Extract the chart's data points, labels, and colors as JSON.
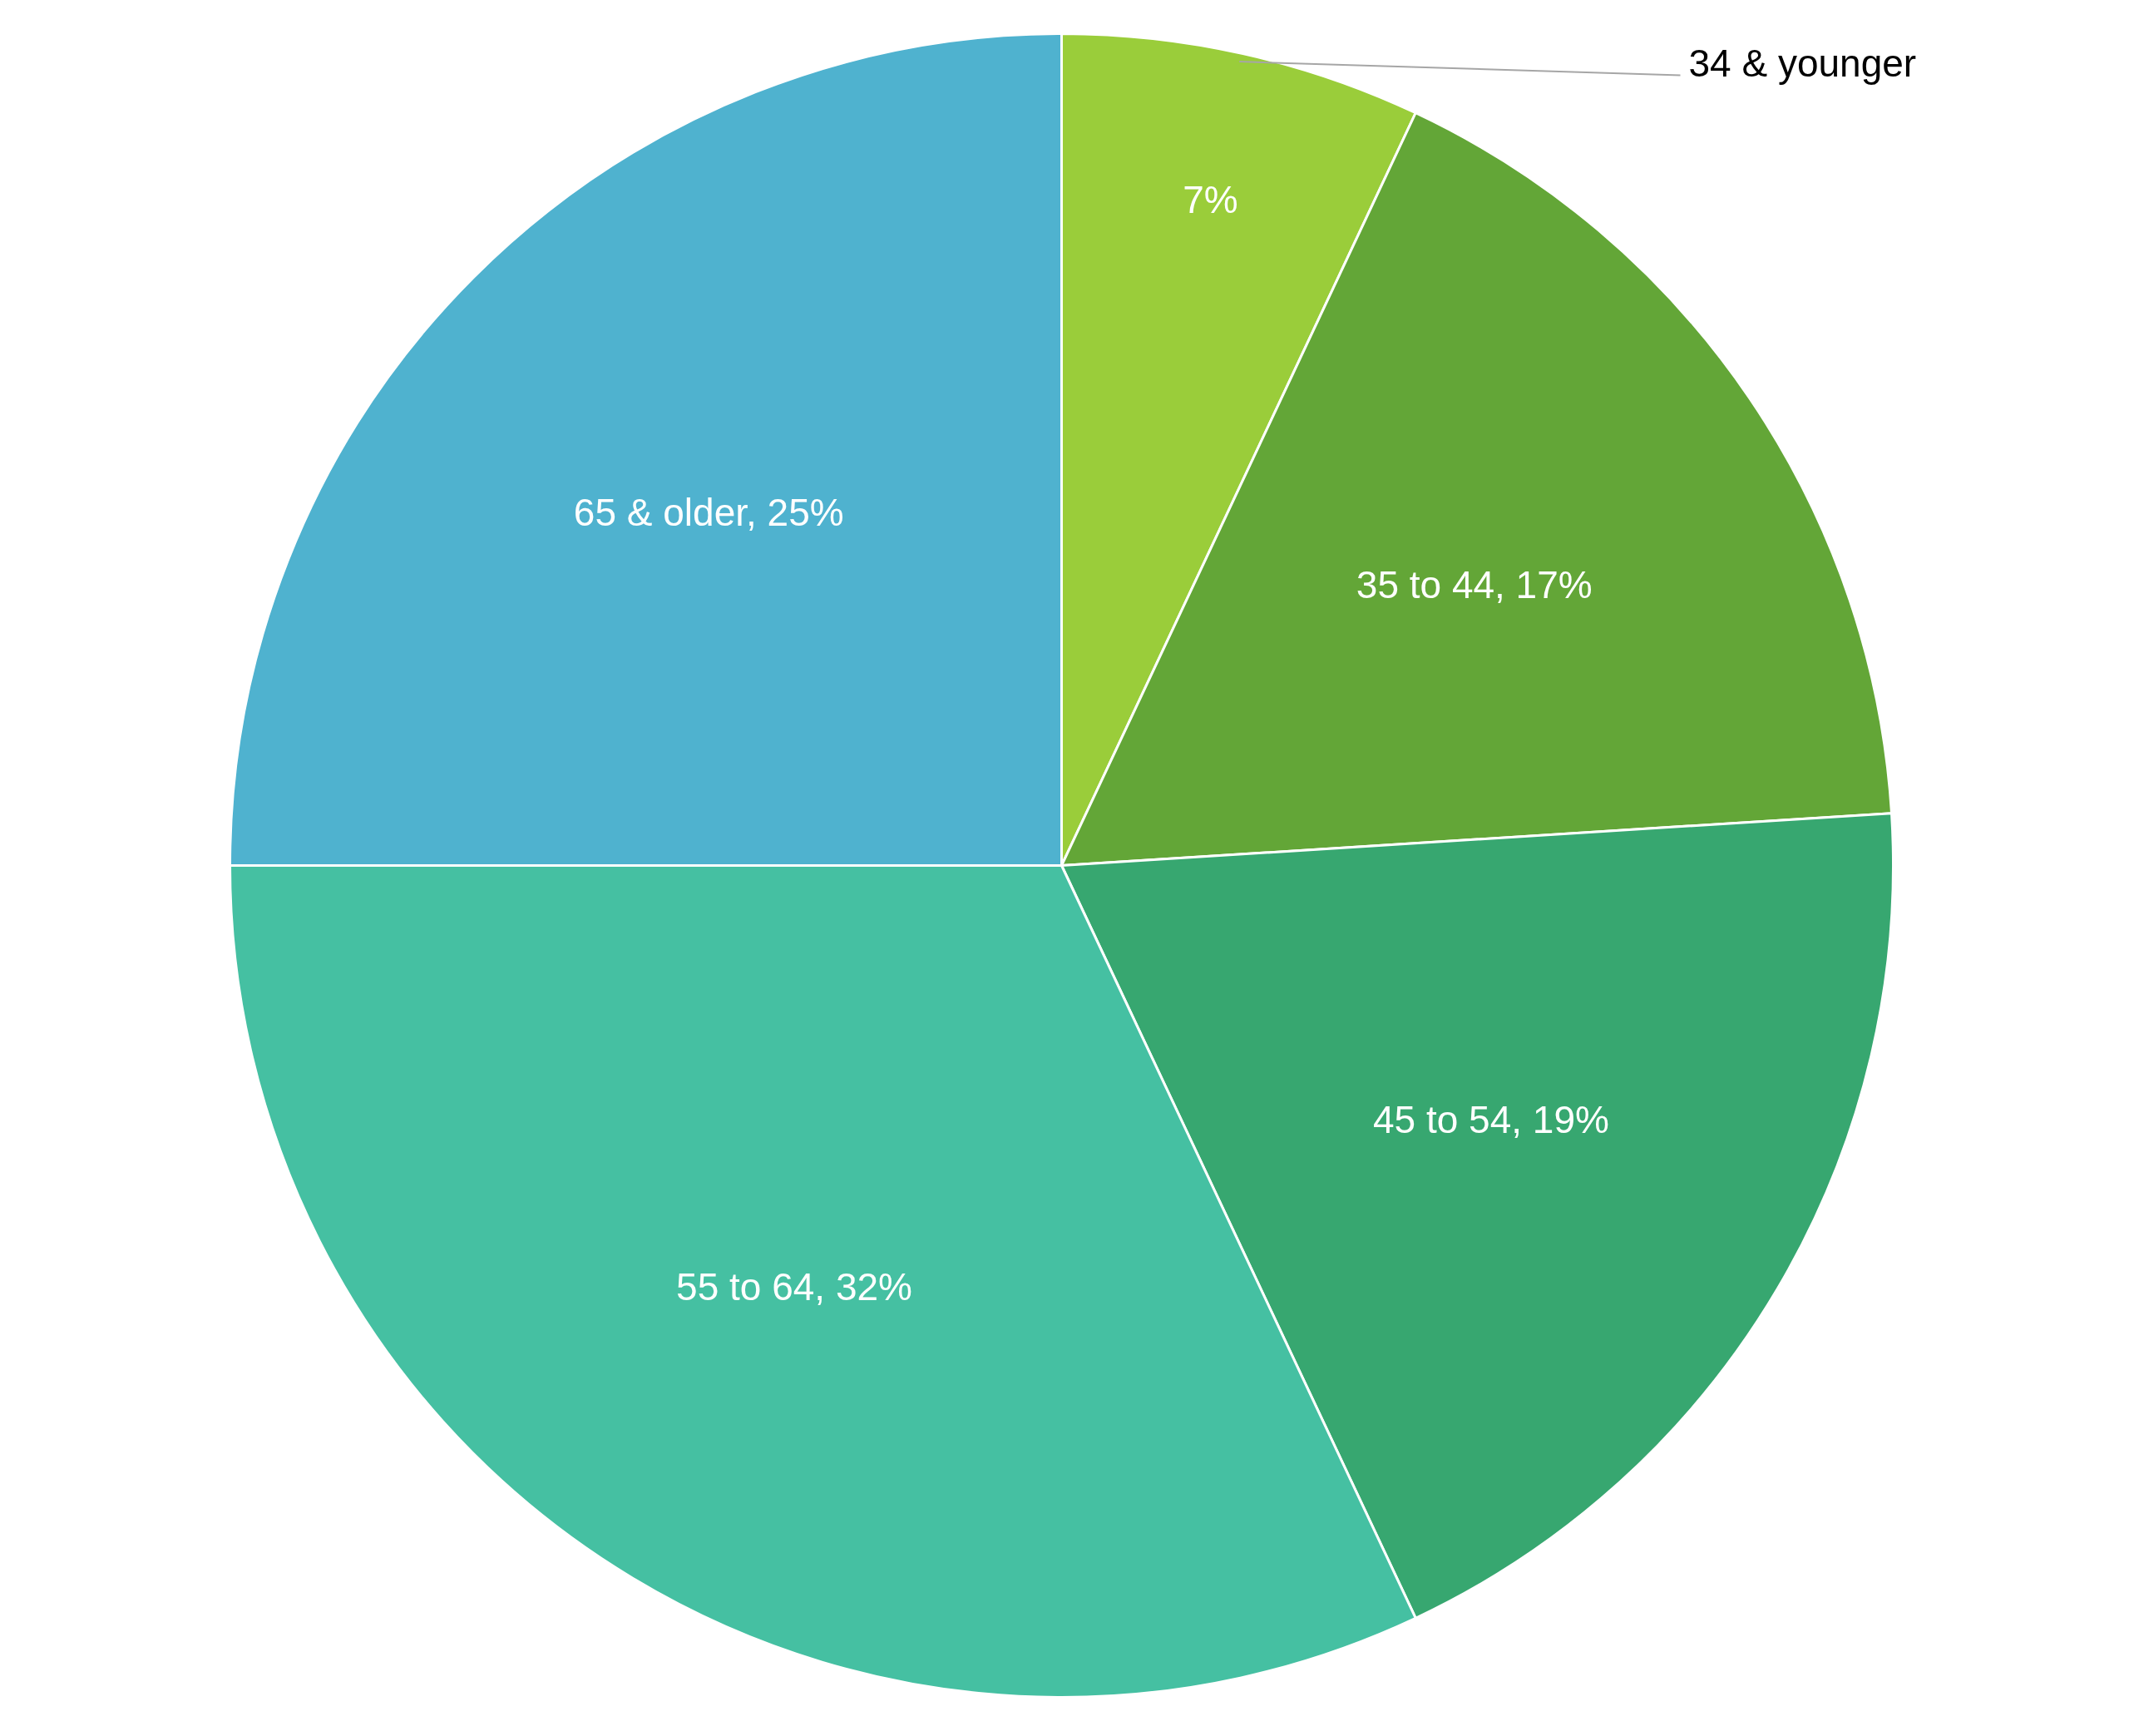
{
  "chart_data": {
    "type": "pie",
    "categories": [
      "34 & younger",
      "35 to 44",
      "45 to 54",
      "55 to 64",
      "65 & older"
    ],
    "values": [
      7,
      17,
      19,
      32,
      25
    ],
    "colors": [
      "#9acd3a",
      "#63a637",
      "#37a770",
      "#45c0a2",
      "#4fb2cf"
    ],
    "value_labels": [
      "7%",
      "17%",
      "19%",
      "32%",
      "25%"
    ]
  }
}
